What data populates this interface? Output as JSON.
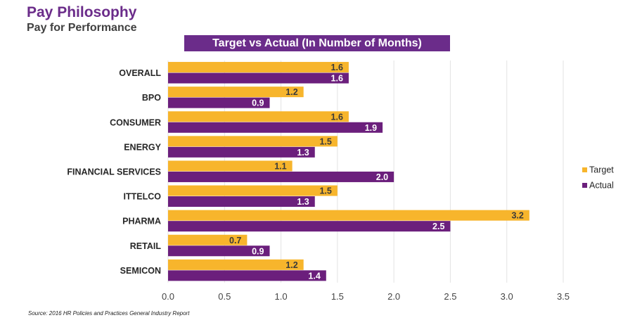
{
  "header": {
    "title": "Pay Philosophy",
    "subtitle": "Pay for Performance"
  },
  "colors": {
    "brand": "#6b2c8a",
    "subtitle": "#404040",
    "target": "#f7b52c",
    "actual": "#6b1f7c",
    "grid": "#e3e3e3"
  },
  "source": "Source: 2016 HR Policies and Practices General Industry Report",
  "chart_data": {
    "type": "bar",
    "orientation": "horizontal",
    "title": "Target vs Actual (In Number of Months)",
    "categories": [
      "OVERALL",
      "BPO",
      "CONSUMER",
      "ENERGY",
      "FINANCIAL SERVICES",
      "ITTELCO",
      "PHARMA",
      "RETAIL",
      "SEMICON"
    ],
    "series": [
      {
        "name": "Target",
        "values": [
          1.6,
          1.2,
          1.6,
          1.5,
          1.1,
          1.5,
          3.2,
          0.7,
          1.2
        ]
      },
      {
        "name": "Actual",
        "values": [
          1.6,
          0.9,
          1.9,
          1.3,
          2.0,
          1.3,
          2.5,
          0.9,
          1.4
        ]
      }
    ],
    "xlim": [
      0,
      3.5
    ],
    "xticks": [
      "0.0",
      "0.5",
      "1.0",
      "1.5",
      "2.0",
      "2.5",
      "3.0",
      "3.5"
    ],
    "xlabel": "",
    "ylabel": "",
    "grid": true,
    "legend_position": "right"
  }
}
